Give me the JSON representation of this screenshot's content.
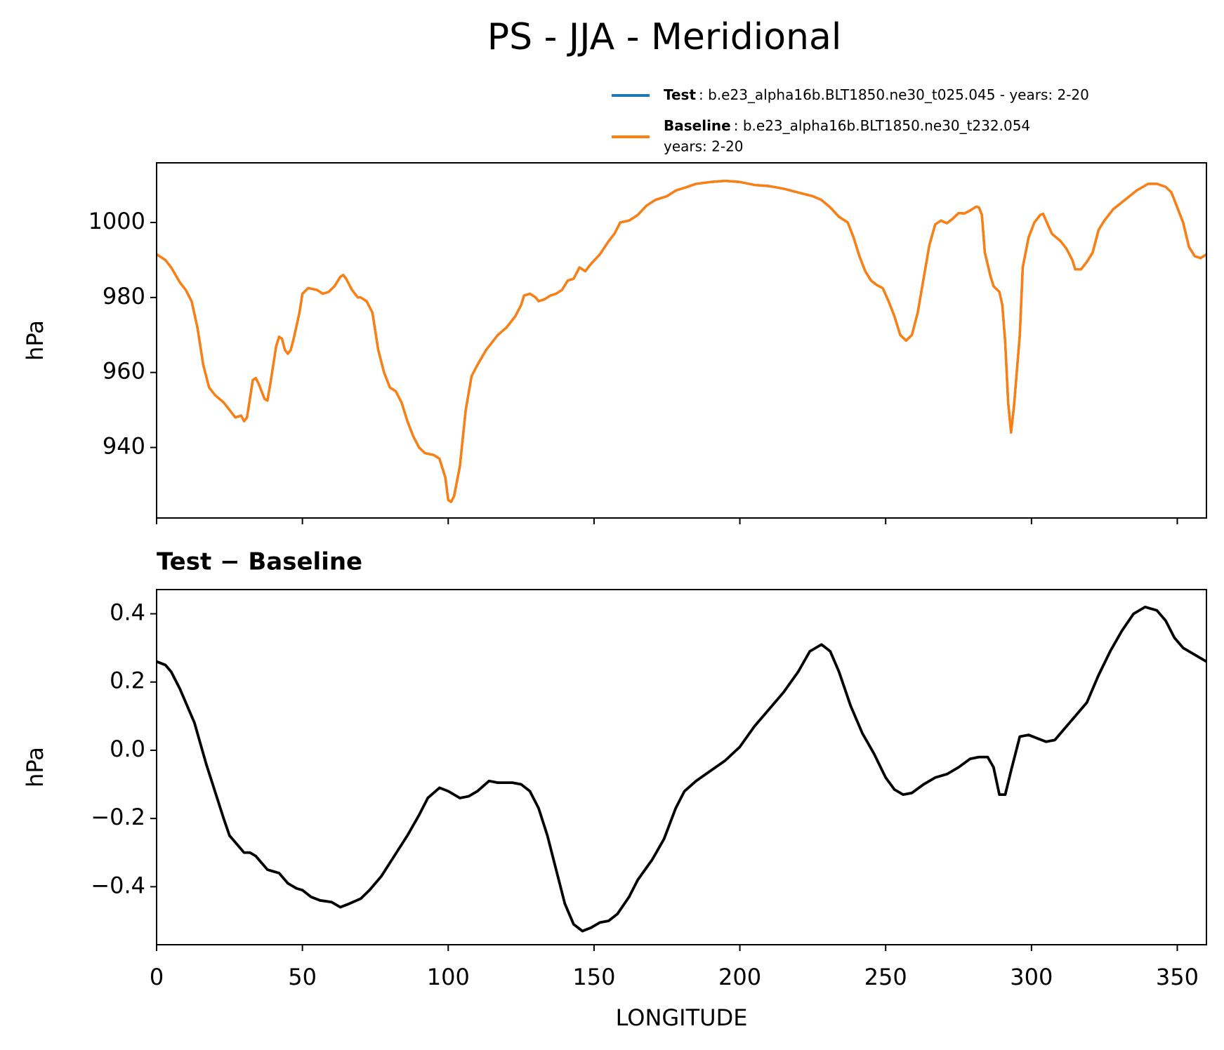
{
  "title": "PS - JJA - Meridional",
  "chart_data": [
    {
      "type": "line",
      "ylabel": "hPa",
      "x": [
        0,
        3,
        5,
        8,
        10,
        12,
        14,
        16,
        18,
        20,
        23,
        25,
        27,
        29,
        30,
        31,
        33,
        34,
        35,
        37,
        38,
        39,
        41,
        42,
        43,
        44,
        45,
        46,
        47,
        49,
        50,
        52,
        55,
        57,
        59,
        61,
        63,
        64,
        65,
        67,
        69,
        70,
        72,
        74,
        76,
        78,
        80,
        82,
        84,
        86,
        88,
        90,
        92,
        95,
        97,
        99,
        100,
        101,
        102,
        104,
        106,
        108,
        110,
        113,
        117,
        120,
        123,
        125,
        126,
        128,
        130,
        131,
        133,
        135,
        137,
        139,
        141,
        143,
        145,
        147,
        149,
        152,
        155,
        157,
        159,
        162,
        165,
        168,
        171,
        175,
        178,
        182,
        185,
        190,
        195,
        200,
        205,
        210,
        215,
        220,
        225,
        228,
        231,
        234,
        237,
        239,
        241,
        243,
        245,
        247,
        249,
        251,
        253,
        255,
        257,
        259,
        261,
        263,
        265,
        267,
        269,
        271,
        273,
        275,
        277,
        279,
        281,
        282,
        283,
        284,
        286,
        287,
        289,
        290,
        291,
        292,
        293,
        294,
        296,
        297,
        299,
        301,
        303,
        304,
        305,
        307,
        310,
        312,
        314,
        315,
        317,
        319,
        321,
        323,
        325,
        328,
        332,
        336,
        340,
        343,
        346,
        348,
        350,
        352,
        354,
        356,
        358,
        360
      ],
      "series": [
        {
          "name": "Test",
          "label": [
            ": b.e23_alpha16b.BLT1850.ne30_t025.045 - years: 2-20"
          ],
          "color": "#1f77b4",
          "values": [
            991.5,
            990,
            988,
            984,
            982,
            979,
            972,
            962,
            956,
            954,
            952,
            950,
            948,
            948.5,
            947,
            948,
            958,
            958.5,
            957,
            953,
            952.5,
            957,
            967,
            969.5,
            969,
            966,
            965,
            966,
            969,
            976,
            981,
            982.5,
            982,
            981,
            981.5,
            983,
            985.5,
            986,
            985,
            982,
            980,
            980,
            979,
            976,
            966,
            960,
            956,
            955,
            952,
            947,
            943,
            940,
            938.5,
            938,
            937,
            932,
            926,
            925.5,
            927,
            935,
            950,
            959,
            962,
            966,
            970,
            972,
            975,
            978,
            980.5,
            981,
            980,
            979,
            979.5,
            980.5,
            981,
            982,
            984.5,
            985,
            988,
            987,
            989,
            991.5,
            995,
            997,
            1000,
            1000.5,
            1002,
            1004.5,
            1006,
            1007,
            1008.5,
            1009.5,
            1010.3,
            1010.8,
            1011.1,
            1010.8,
            1010,
            1009.7,
            1009,
            1008,
            1007,
            1006,
            1004,
            1001.5,
            1000,
            996,
            991,
            987,
            984.5,
            983.3,
            982.5,
            979,
            975,
            970,
            968.5,
            970,
            976,
            985,
            994,
            999.5,
            1000.5,
            999.8,
            1001,
            1002.5,
            1002.4,
            1003.2,
            1004.2,
            1004,
            1002,
            992,
            985.5,
            983,
            981.5,
            978,
            968,
            952,
            944,
            951,
            970,
            988,
            996,
            1000,
            1002,
            1002.3,
            1000.5,
            997,
            995,
            993,
            990,
            987.5,
            987.5,
            989.5,
            992,
            998,
            1000.5,
            1003.5,
            1006,
            1008.5,
            1010.3,
            1010.3,
            1009.5,
            1008,
            1004,
            1000,
            993.5,
            991,
            990.5,
            991.5
          ]
        },
        {
          "name": "Baseline",
          "label": [
            ": b.e23_alpha16b.BLT1850.ne30_t232.054",
            "years: 2-20"
          ],
          "color": "#ff7f0e",
          "values": [
            991.5,
            990,
            988,
            984,
            982,
            979,
            972,
            962,
            956,
            954,
            952,
            950,
            948,
            948.5,
            947,
            948,
            958,
            958.5,
            957,
            953,
            952.5,
            957,
            967,
            969.5,
            969,
            966,
            965,
            966,
            969,
            976,
            981,
            982.5,
            982,
            981,
            981.5,
            983,
            985.5,
            986,
            985,
            982,
            980,
            980,
            979,
            976,
            966,
            960,
            956,
            955,
            952,
            947,
            943,
            940,
            938.5,
            938,
            937,
            932,
            926,
            925.5,
            927,
            935,
            950,
            959,
            962,
            966,
            970,
            972,
            975,
            978,
            980.5,
            981,
            980,
            979,
            979.5,
            980.5,
            981,
            982,
            984.5,
            985,
            988,
            987,
            989,
            991.5,
            995,
            997,
            1000,
            1000.5,
            1002,
            1004.5,
            1006,
            1007,
            1008.5,
            1009.5,
            1010.3,
            1010.8,
            1011.1,
            1010.8,
            1010,
            1009.7,
            1009,
            1008,
            1007,
            1006,
            1004,
            1001.5,
            1000,
            996,
            991,
            987,
            984.5,
            983.3,
            982.5,
            979,
            975,
            970,
            968.5,
            970,
            976,
            985,
            994,
            999.5,
            1000.5,
            999.8,
            1001,
            1002.5,
            1002.4,
            1003.2,
            1004.2,
            1004,
            1002,
            992,
            985.5,
            983,
            981.5,
            978,
            968,
            952,
            944,
            951,
            970,
            988,
            996,
            1000,
            1002,
            1002.3,
            1000.5,
            997,
            995,
            993,
            990,
            987.5,
            987.5,
            989.5,
            992,
            998,
            1000.5,
            1003.5,
            1006,
            1008.5,
            1010.3,
            1010.3,
            1009.5,
            1008,
            1004,
            1000,
            993.5,
            991,
            990.5,
            991.5
          ]
        }
      ],
      "xlim": [
        0,
        360
      ],
      "xticks": [
        0,
        50,
        100,
        150,
        200,
        250,
        300,
        350
      ],
      "show_xtick_labels": false,
      "ylim": [
        921.2,
        1015.9
      ],
      "yticks": [
        940,
        960,
        980,
        1000
      ]
    },
    {
      "type": "line",
      "title": "Test − Baseline",
      "xlabel": "LONGITUDE",
      "ylabel": "hPa",
      "x": [
        0,
        3,
        5,
        8,
        10,
        13,
        15,
        17,
        20,
        23,
        25,
        28,
        30,
        32,
        34,
        36,
        38,
        40,
        42,
        45,
        48,
        50,
        53,
        56,
        60,
        63,
        66,
        70,
        73,
        77,
        80,
        83,
        86,
        90,
        93,
        97,
        100,
        104,
        107,
        110,
        114,
        117,
        122,
        125,
        128,
        131,
        134,
        137,
        140,
        143,
        146,
        149,
        152,
        155,
        158,
        162,
        165,
        170,
        174,
        178,
        181,
        185,
        190,
        195,
        200,
        205,
        210,
        215,
        220,
        224,
        228,
        231,
        234,
        238,
        242,
        246,
        250,
        253,
        256,
        259,
        263,
        267,
        271,
        275,
        279,
        282,
        285,
        287,
        289,
        291,
        293,
        296,
        299,
        302,
        305,
        308,
        311,
        315,
        319,
        323,
        327,
        331,
        335,
        339,
        343,
        346,
        349,
        352,
        356,
        360
      ],
      "series": [
        {
          "color": "#000000",
          "values": [
            0.26,
            0.25,
            0.23,
            0.18,
            0.14,
            0.08,
            0.02,
            -0.04,
            -0.12,
            -0.2,
            -0.25,
            -0.28,
            -0.3,
            -0.3,
            -0.31,
            -0.33,
            -0.35,
            -0.355,
            -0.36,
            -0.39,
            -0.405,
            -0.41,
            -0.43,
            -0.44,
            -0.445,
            -0.46,
            -0.45,
            -0.435,
            -0.41,
            -0.37,
            -0.33,
            -0.29,
            -0.25,
            -0.19,
            -0.14,
            -0.11,
            -0.12,
            -0.14,
            -0.135,
            -0.12,
            -0.09,
            -0.095,
            -0.095,
            -0.1,
            -0.12,
            -0.17,
            -0.25,
            -0.35,
            -0.45,
            -0.51,
            -0.53,
            -0.52,
            -0.505,
            -0.5,
            -0.48,
            -0.43,
            -0.38,
            -0.32,
            -0.26,
            -0.17,
            -0.12,
            -0.09,
            -0.06,
            -0.03,
            0.01,
            0.07,
            0.12,
            0.17,
            0.23,
            0.29,
            0.31,
            0.29,
            0.23,
            0.13,
            0.05,
            -0.01,
            -0.08,
            -0.115,
            -0.13,
            -0.125,
            -0.1,
            -0.08,
            -0.07,
            -0.05,
            -0.025,
            -0.02,
            -0.02,
            -0.05,
            -0.13,
            -0.13,
            -0.06,
            0.04,
            0.045,
            0.035,
            0.025,
            0.03,
            0.06,
            0.1,
            0.14,
            0.22,
            0.29,
            0.35,
            0.4,
            0.42,
            0.41,
            0.38,
            0.33,
            0.3,
            0.28,
            0.26
          ]
        }
      ],
      "xlim": [
        0,
        360
      ],
      "xticks": [
        0,
        50,
        100,
        150,
        200,
        250,
        300,
        350
      ],
      "ylim": [
        -0.57,
        0.471
      ],
      "yticks": [
        {
          "value": -0.4,
          "label": "−0.4"
        },
        {
          "value": -0.2,
          "label": "−0.2"
        },
        {
          "value": 0,
          "label": "0.0"
        },
        0.2,
        0.4
      ]
    }
  ]
}
